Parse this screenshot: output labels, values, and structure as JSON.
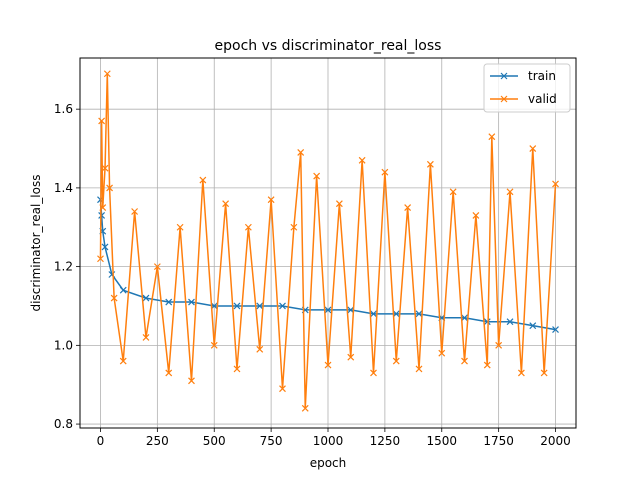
{
  "chart_data": {
    "type": "line",
    "title": "epoch vs discriminator_real_loss",
    "xlabel": "epoch",
    "ylabel": "discriminator_real_loss",
    "xlim": [
      -90,
      2090
    ],
    "ylim": [
      0.79,
      1.73
    ],
    "xticks": [
      0,
      250,
      500,
      750,
      1000,
      1250,
      1500,
      1750,
      2000
    ],
    "yticks": [
      0.8,
      1.0,
      1.2,
      1.4,
      1.6
    ],
    "ytick_labels": [
      "0.8",
      "1.0",
      "1.2",
      "1.4",
      "1.6"
    ],
    "grid": true,
    "legend_position": "upper right",
    "marker": "x",
    "series": [
      {
        "name": "train",
        "color": "#1f77b4",
        "x": [
          0,
          5,
          10,
          20,
          50,
          100,
          200,
          300,
          400,
          500,
          600,
          700,
          800,
          900,
          1000,
          1100,
          1200,
          1300,
          1400,
          1500,
          1600,
          1700,
          1800,
          1900,
          2000
        ],
        "y": [
          1.37,
          1.33,
          1.29,
          1.25,
          1.18,
          1.14,
          1.12,
          1.11,
          1.11,
          1.1,
          1.1,
          1.1,
          1.1,
          1.09,
          1.09,
          1.09,
          1.08,
          1.08,
          1.08,
          1.07,
          1.07,
          1.06,
          1.06,
          1.05,
          1.04
        ]
      },
      {
        "name": "valid",
        "color": "#ff7f0e",
        "x": [
          0,
          5,
          10,
          20,
          30,
          40,
          60,
          100,
          150,
          200,
          250,
          300,
          350,
          400,
          450,
          500,
          550,
          600,
          650,
          700,
          750,
          800,
          850,
          880,
          900,
          950,
          1000,
          1050,
          1100,
          1150,
          1200,
          1250,
          1300,
          1350,
          1400,
          1450,
          1500,
          1550,
          1600,
          1650,
          1700,
          1720,
          1750,
          1800,
          1850,
          1900,
          1950,
          2000
        ],
        "y": [
          1.22,
          1.57,
          1.35,
          1.45,
          1.69,
          1.4,
          1.12,
          0.96,
          1.34,
          1.02,
          1.2,
          0.93,
          1.3,
          0.91,
          1.42,
          1.0,
          1.36,
          0.94,
          1.3,
          0.99,
          1.37,
          0.89,
          1.3,
          1.49,
          0.84,
          1.43,
          0.95,
          1.36,
          0.97,
          1.47,
          0.93,
          1.44,
          0.96,
          1.35,
          0.94,
          1.46,
          0.98,
          1.39,
          0.96,
          1.33,
          0.95,
          1.53,
          1.0,
          1.39,
          0.93,
          1.5,
          0.93,
          1.41
        ]
      }
    ]
  }
}
